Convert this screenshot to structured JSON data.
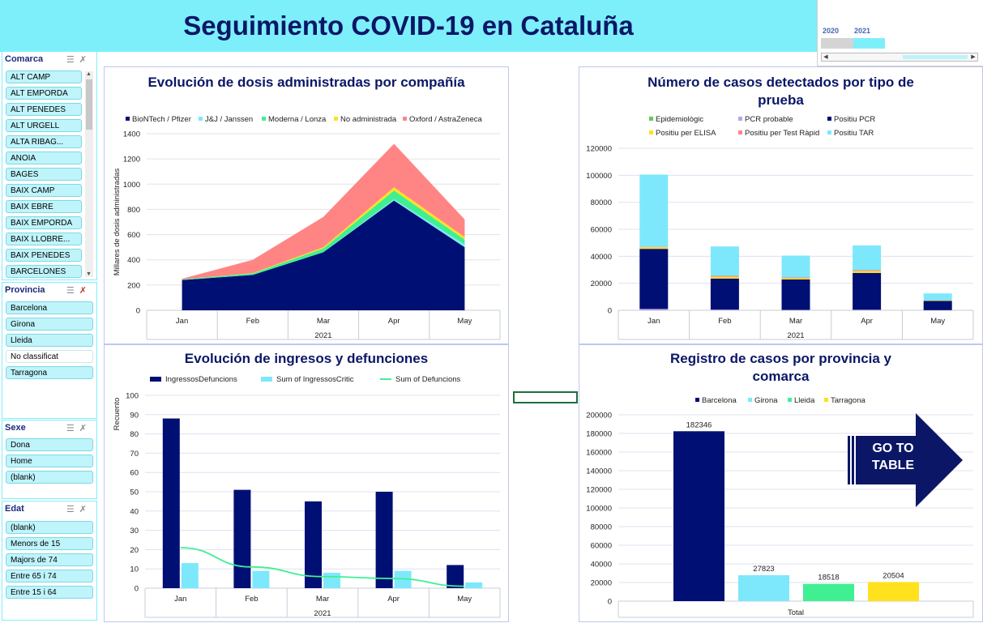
{
  "title": "Seguimiento COVID-19 en Cataluña",
  "timeline": {
    "years": [
      "2020",
      "2021"
    ]
  },
  "colors": {
    "navy": "#000f73",
    "cyan": "#7de8fb",
    "green": "#3ff093",
    "yellow": "#ffe11e",
    "salmon": "#ff8585",
    "lime": "#62c85a",
    "lavender": "#b9a3ec",
    "banner": "#7deffa"
  },
  "slicers": {
    "comarca": {
      "title": "Comarca",
      "items": [
        "ALT CAMP",
        "ALT EMPORDA",
        "ALT PENEDES",
        "ALT URGELL",
        "ALTA RIBAG...",
        "ANOIA",
        "BAGES",
        "BAIX CAMP",
        "BAIX EBRE",
        "BAIX EMPORDA",
        "BAIX LLOBRE...",
        "BAIX PENEDES",
        "BARCELONES"
      ]
    },
    "provincia": {
      "title": "Provincia",
      "items": [
        "Barcelona",
        "Girona",
        "Lleida",
        "No classificat",
        "Tarragona"
      ]
    },
    "sexe": {
      "title": "Sexe",
      "items": [
        "Dona",
        "Home",
        "(blank)"
      ]
    },
    "edat": {
      "title": "Edat",
      "items": [
        "(blank)",
        "Menors de 15",
        "Majors de 74",
        "Entre 65 i 74",
        "Entre 15 i 64"
      ]
    }
  },
  "goto_button": {
    "line1": "GO TO",
    "line2": "TABLE"
  },
  "chart_data": [
    {
      "id": "dosis",
      "type": "area",
      "title": "Evolución de dosis administradas por compañía",
      "ylabel": "Millares de dosis administradas",
      "xgroup": "2021",
      "stacked": true,
      "ylim": [
        0,
        1400
      ],
      "yticks": [
        "0",
        "200",
        "400",
        "600",
        "800",
        "1000",
        "1200",
        "1400"
      ],
      "categories": [
        "Jan",
        "Feb",
        "Mar",
        "Apr",
        "May"
      ],
      "series": [
        {
          "name": "BioNTech / Pfizer",
          "color": "#000f73",
          "values": [
            240,
            280,
            460,
            870,
            500
          ]
        },
        {
          "name": "J&J / Janssen",
          "color": "#7de8fb",
          "values": [
            0,
            0,
            0,
            10,
            20
          ]
        },
        {
          "name": "Moderna / Lonza",
          "color": "#3ff093",
          "values": [
            5,
            12,
            30,
            70,
            40
          ]
        },
        {
          "name": "No administrada",
          "color": "#ffe11e",
          "values": [
            0,
            3,
            10,
            25,
            20
          ]
        },
        {
          "name": "Oxford / AstraZeneca",
          "color": "#ff8585",
          "values": [
            5,
            105,
            240,
            345,
            140
          ]
        }
      ]
    },
    {
      "id": "pruebas",
      "type": "bar",
      "title": "Número de casos detectados por tipo de prueba",
      "xgroup": "2021",
      "stacked": true,
      "ylim": [
        0,
        120000
      ],
      "yticks": [
        "0",
        "20000",
        "40000",
        "60000",
        "80000",
        "100000",
        "120000"
      ],
      "categories": [
        "Jan",
        "Feb",
        "Mar",
        "Apr",
        "May"
      ],
      "series": [
        {
          "name": "Epidemiològic",
          "color": "#62c85a",
          "values": [
            0,
            0,
            0,
            0,
            0
          ]
        },
        {
          "name": "PCR probable",
          "color": "#b9a3ec",
          "values": [
            1000,
            500,
            300,
            400,
            100
          ]
        },
        {
          "name": "Positiu PCR",
          "color": "#000f73",
          "values": [
            44500,
            23000,
            22500,
            27300,
            6800
          ]
        },
        {
          "name": "Positiu per ELISA",
          "color": "#ffe11e",
          "values": [
            1200,
            1300,
            1000,
            1300,
            300
          ]
        },
        {
          "name": "Positiu per Test Ràpid",
          "color": "#ff8585",
          "values": [
            300,
            700,
            500,
            700,
            200
          ]
        },
        {
          "name": "Positiu TAR",
          "color": "#7de8fb",
          "values": [
            53500,
            21800,
            16200,
            18300,
            5100
          ]
        }
      ]
    },
    {
      "id": "ingresos",
      "type": "bar",
      "title": "Evolución de ingresos y defunciones",
      "ylabel": "Recuento",
      "xgroup": "2021",
      "ylim": [
        0,
        100
      ],
      "yticks": [
        "0",
        "10",
        "20",
        "30",
        "40",
        "50",
        "60",
        "70",
        "80",
        "90",
        "100"
      ],
      "categories": [
        "Jan",
        "Feb",
        "Mar",
        "Apr",
        "May"
      ],
      "series": [
        {
          "name": "IngressosDefuncions",
          "color": "#000f73",
          "kind": "bar",
          "values": [
            88,
            51,
            45,
            50,
            12
          ]
        },
        {
          "name": "Sum of IngressosCritic",
          "color": "#7de8fb",
          "kind": "bar",
          "values": [
            13,
            9,
            8,
            9,
            3
          ]
        },
        {
          "name": "Sum of Defuncions",
          "color": "#3ff093",
          "kind": "line",
          "values": [
            21,
            11,
            6,
            5,
            1
          ]
        }
      ]
    },
    {
      "id": "provincia",
      "type": "bar",
      "title": "Registro de casos por provincia y comarca",
      "ylim": [
        0,
        200000
      ],
      "yticks": [
        "0",
        "20000",
        "40000",
        "60000",
        "80000",
        "100000",
        "120000",
        "140000",
        "160000",
        "180000",
        "200000"
      ],
      "categories": [
        "Total"
      ],
      "series": [
        {
          "name": "Barcelona",
          "color": "#000f73",
          "values": [
            182346
          ]
        },
        {
          "name": "Girona",
          "color": "#7de8fb",
          "values": [
            27823
          ]
        },
        {
          "name": "Lleida",
          "color": "#3ff093",
          "values": [
            18518
          ]
        },
        {
          "name": "Tarragona",
          "color": "#ffe11e",
          "values": [
            20504
          ]
        }
      ],
      "data_labels": [
        "182346",
        "27823",
        "18518",
        "20504"
      ]
    }
  ]
}
